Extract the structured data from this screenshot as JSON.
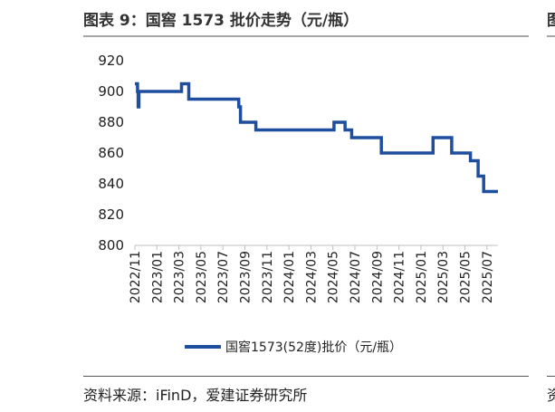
{
  "figure": {
    "title": "图表 9：国窖 1573 批价走势（元/瓶）",
    "source": "资料来源：iFinD，爱建证券研究所"
  },
  "chart_data": {
    "type": "line",
    "title": "图表 9：国窖 1573 批价走势（元/瓶）",
    "xlabel": "",
    "ylabel": "",
    "ylim": [
      800,
      920
    ],
    "yticks": [
      "800",
      "820",
      "840",
      "860",
      "880",
      "900",
      "920"
    ],
    "xticks": [
      "2022/11",
      "2023/01",
      "2023/03",
      "2023/05",
      "2023/07",
      "2023/09",
      "2023/11",
      "2024/01",
      "2024/03",
      "2024/05",
      "2024/07",
      "2024/09",
      "2024/11",
      "2025/01",
      "2025/03",
      "2025/05",
      "2025/07"
    ],
    "grid": false,
    "legend_position": "bottom",
    "line_color": "#1f4e9e",
    "series": [
      {
        "name": "国窖1573(52度)批价（元/瓶）",
        "x": [
          0.0,
          0.12,
          0.12,
          0.15,
          0.15,
          0.18,
          0.18,
          0.45,
          0.45,
          0.5,
          0.5,
          0.52,
          0.52,
          0.55,
          0.55,
          0.58,
          0.58,
          0.62,
          0.62,
          0.65,
          0.65,
          0.68,
          0.68,
          2.12,
          2.12,
          2.45,
          2.45,
          2.5,
          2.5,
          4.72,
          4.72,
          4.8,
          4.8,
          5.5,
          5.5,
          6.6,
          6.6,
          9.05,
          9.05,
          9.55,
          9.55,
          9.85,
          9.85,
          10.25,
          10.25,
          11.2,
          11.2,
          13.55,
          13.55,
          14.4,
          14.4,
          15.25,
          15.25,
          15.6,
          15.6,
          15.85,
          15.85,
          16.5
        ],
        "y": [
          905,
          905,
          900,
          900,
          890,
          890,
          900,
          900,
          900,
          900,
          900,
          900,
          900,
          900,
          900,
          900,
          900,
          900,
          900,
          900,
          900,
          900,
          900,
          900,
          905,
          905,
          895,
          895,
          895,
          895,
          890,
          890,
          880,
          880,
          875,
          875,
          875,
          875,
          880,
          880,
          875,
          875,
          870,
          870,
          870,
          870,
          860,
          860,
          870,
          870,
          860,
          860,
          855,
          855,
          845,
          845,
          835,
          835
        ]
      }
    ]
  }
}
